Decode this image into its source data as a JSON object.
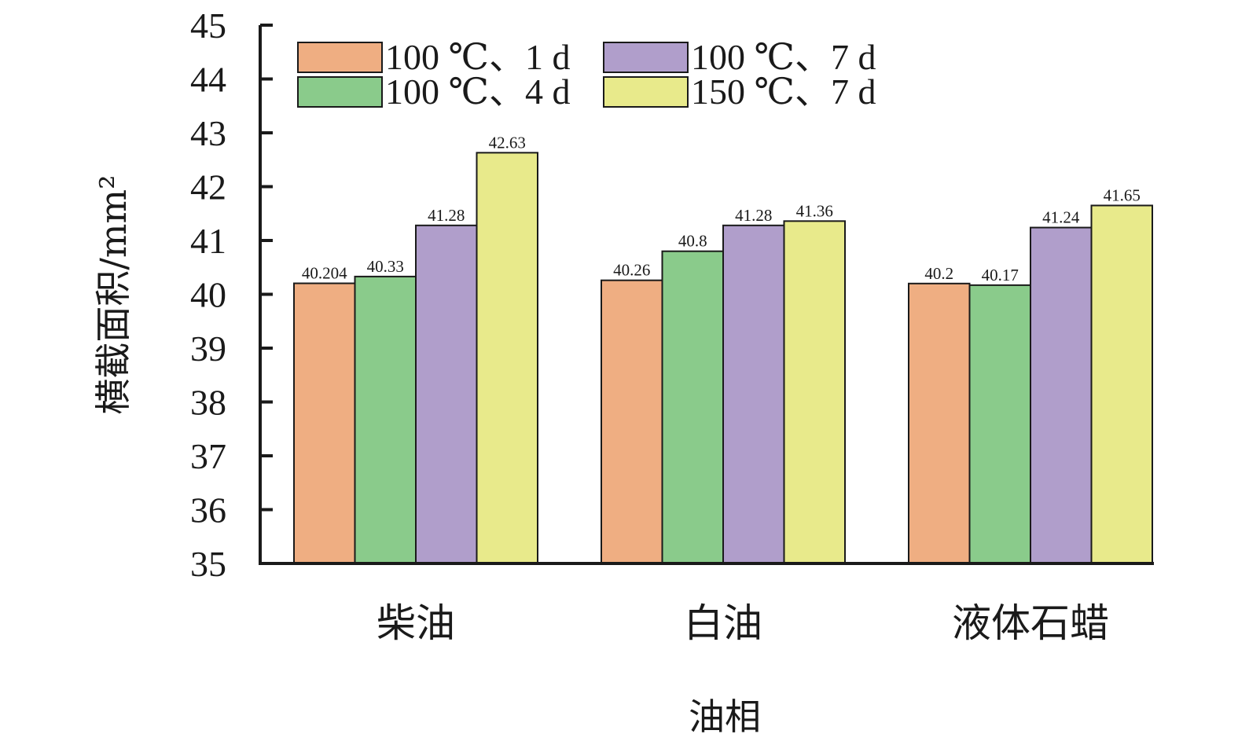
{
  "chart_data": {
    "type": "bar",
    "categories": [
      "柴油",
      "白油",
      "液体石蜡"
    ],
    "series": [
      {
        "name": "100 ℃、1 d",
        "values": [
          40.204,
          40.26,
          40.2
        ],
        "labels": [
          "40.204",
          "40.26",
          "40.2"
        ],
        "color": "#EFAE82"
      },
      {
        "name": "100 ℃、4 d",
        "values": [
          40.33,
          40.8,
          40.17
        ],
        "labels": [
          "40.33",
          "40.8",
          "40.17"
        ],
        "color": "#8ACB8B"
      },
      {
        "name": "100 ℃、7 d",
        "values": [
          41.28,
          41.28,
          41.24
        ],
        "labels": [
          "41.28",
          "41.28",
          "41.24"
        ],
        "color": "#B09ECB"
      },
      {
        "name": "150 ℃、7 d",
        "values": [
          42.63,
          41.36,
          41.65
        ],
        "labels": [
          "42.63",
          "41.36",
          "41.65"
        ],
        "color": "#E8EA8B"
      }
    ],
    "xlabel": "油相",
    "ylabel": "横截面积/mm²",
    "ylim": [
      35,
      45
    ],
    "yticks": [
      "35",
      "36",
      "37",
      "38",
      "39",
      "40",
      "41",
      "42",
      "43",
      "44",
      "45"
    ],
    "legend_position": "top-left",
    "grid": false
  }
}
